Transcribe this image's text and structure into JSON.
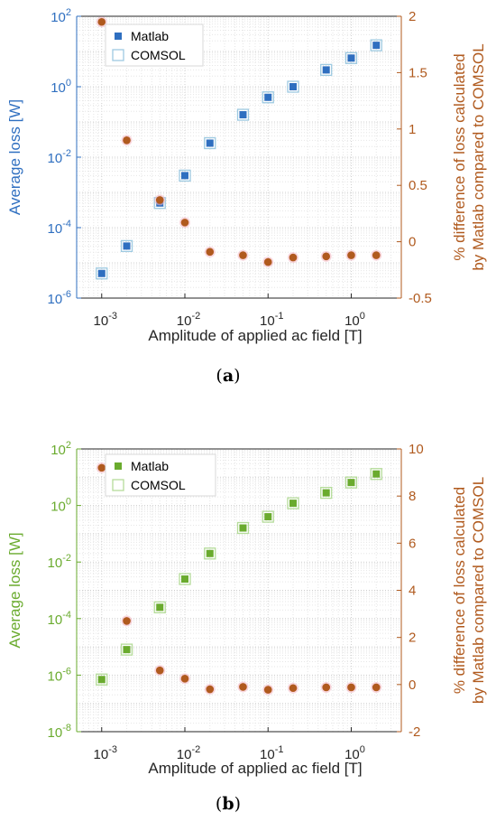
{
  "chart_data": [
    {
      "type": "scatter",
      "panel_label": "a",
      "xlabel": "Amplitude of applied ac field [T]",
      "ylabel_left": "Average loss [W]",
      "ylabel_right": "% difference of loss calculated",
      "ylabel_right_line2": "by Matlab compared to COMSOL",
      "x_scale": "log",
      "xlim": [
        0.0005,
        4
      ],
      "y_left_scale": "log",
      "ylim_left": [
        1e-06,
        100
      ],
      "ylim_right": [
        -0.5,
        2
      ],
      "grid": true,
      "legend_position": "top-left",
      "left_color": "#2f6fc0",
      "right_color": "#b05a1e",
      "x_ticks": [
        {
          "v": 0.001,
          "base": "10",
          "exp": "-3"
        },
        {
          "v": 0.01,
          "base": "10",
          "exp": "-2"
        },
        {
          "v": 0.1,
          "base": "10",
          "exp": "-1"
        },
        {
          "v": 1,
          "base": "10",
          "exp": "0"
        }
      ],
      "y_left_ticks": [
        {
          "v": 1e-06,
          "base": "10",
          "exp": "-6"
        },
        {
          "v": 0.0001,
          "base": "10",
          "exp": "-4"
        },
        {
          "v": 0.01,
          "base": "10",
          "exp": "-2"
        },
        {
          "v": 1,
          "base": "10",
          "exp": "0"
        },
        {
          "v": 100,
          "base": "10",
          "exp": "2"
        }
      ],
      "y_right_ticks": [
        {
          "v": -0.5,
          "label": "-0.5"
        },
        {
          "v": 0,
          "label": "0"
        },
        {
          "v": 0.5,
          "label": "0.5"
        },
        {
          "v": 1,
          "label": "1"
        },
        {
          "v": 1.5,
          "label": "1.5"
        },
        {
          "v": 2,
          "label": "2"
        }
      ],
      "x": [
        0.001,
        0.002,
        0.005,
        0.01,
        0.02,
        0.05,
        0.1,
        0.2,
        0.5,
        1,
        2
      ],
      "series": [
        {
          "name": "Matlab",
          "axis": "left",
          "marker": "filled-square",
          "color": "#2f6fc0",
          "values": [
            5e-06,
            3e-05,
            0.0005,
            0.003,
            0.025,
            0.16,
            0.5,
            1.0,
            3.0,
            6.5,
            15
          ]
        },
        {
          "name": "COMSOL",
          "axis": "left",
          "marker": "open-square",
          "color": "#9ecae1",
          "values": [
            5e-06,
            3e-05,
            0.0005,
            0.003,
            0.025,
            0.16,
            0.5,
            1.0,
            3.0,
            6.5,
            15
          ]
        },
        {
          "axis": "right",
          "marker": "circle",
          "color": "#b05a1e",
          "values": [
            1.95,
            0.9,
            0.37,
            0.17,
            -0.09,
            -0.12,
            -0.18,
            -0.14,
            -0.13,
            -0.12,
            -0.12
          ]
        }
      ]
    },
    {
      "type": "scatter",
      "panel_label": "b",
      "xlabel": "Amplitude of applied ac field [T]",
      "ylabel_left": "Average loss [W]",
      "ylabel_right": "% difference of loss calculated",
      "ylabel_right_line2": "by Matlab compared to COMSOL",
      "x_scale": "log",
      "xlim": [
        0.0005,
        4
      ],
      "y_left_scale": "log",
      "ylim_left": [
        1e-08,
        100
      ],
      "ylim_right": [
        -2,
        10
      ],
      "grid": true,
      "legend_position": "top-left",
      "left_color": "#6aab2e",
      "right_color": "#b05a1e",
      "x_ticks": [
        {
          "v": 0.001,
          "base": "10",
          "exp": "-3"
        },
        {
          "v": 0.01,
          "base": "10",
          "exp": "-2"
        },
        {
          "v": 0.1,
          "base": "10",
          "exp": "-1"
        },
        {
          "v": 1,
          "base": "10",
          "exp": "0"
        }
      ],
      "y_left_ticks": [
        {
          "v": 1e-08,
          "base": "10",
          "exp": "-8"
        },
        {
          "v": 1e-06,
          "base": "10",
          "exp": "-6"
        },
        {
          "v": 0.0001,
          "base": "10",
          "exp": "-4"
        },
        {
          "v": 0.01,
          "base": "10",
          "exp": "-2"
        },
        {
          "v": 1,
          "base": "10",
          "exp": "0"
        },
        {
          "v": 100,
          "base": "10",
          "exp": "2"
        }
      ],
      "y_right_ticks": [
        {
          "v": -2,
          "label": "-2"
        },
        {
          "v": 0,
          "label": "0"
        },
        {
          "v": 2,
          "label": "2"
        },
        {
          "v": 4,
          "label": "4"
        },
        {
          "v": 6,
          "label": "6"
        },
        {
          "v": 8,
          "label": "8"
        },
        {
          "v": 10,
          "label": "10"
        }
      ],
      "x": [
        0.001,
        0.002,
        0.005,
        0.01,
        0.02,
        0.05,
        0.1,
        0.2,
        0.5,
        1,
        2
      ],
      "series": [
        {
          "name": "Matlab",
          "axis": "left",
          "marker": "filled-square",
          "color": "#6aab2e",
          "values": [
            7e-07,
            8e-06,
            0.00025,
            0.0025,
            0.02,
            0.16,
            0.4,
            1.2,
            2.8,
            6.5,
            13
          ]
        },
        {
          "name": "COMSOL",
          "axis": "left",
          "marker": "open-square",
          "color": "#b5dc9a",
          "values": [
            7e-07,
            8e-06,
            0.00025,
            0.0025,
            0.02,
            0.16,
            0.4,
            1.2,
            2.8,
            6.5,
            13
          ]
        },
        {
          "axis": "right",
          "marker": "circle",
          "color": "#b05a1e",
          "values": [
            9.2,
            2.7,
            0.6,
            0.25,
            -0.2,
            -0.1,
            -0.22,
            -0.15,
            -0.12,
            -0.12,
            -0.12
          ]
        }
      ]
    }
  ]
}
